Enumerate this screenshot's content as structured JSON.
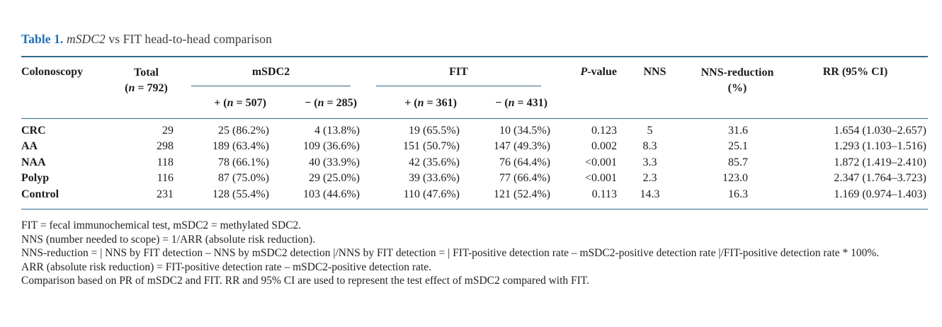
{
  "title": {
    "label": "Table 1.",
    "italic": " mSDC2",
    "rest": " vs FIT head-to-head comparison"
  },
  "header": {
    "colonoscopy": "Colonoscopy",
    "total_line1": "Total",
    "total_pre": "(",
    "total_n": "n",
    "total_post": " = 792)",
    "msdc2_label": "mSDC2",
    "fit_label": "FIT",
    "subcols": [
      {
        "pre": "+ (",
        "n": "n",
        "post": " = 507)"
      },
      {
        "pre": "− (",
        "n": "n",
        "post": " = 285)"
      },
      {
        "pre": "+ (",
        "n": "n",
        "post": " = 361)"
      },
      {
        "pre": "− (",
        "n": "n",
        "post": " = 431)"
      }
    ],
    "pvalue_italic": "P",
    "pvalue_rest": "-value",
    "nns": "NNS",
    "nns_reduction_line1": "NNS-reduction",
    "nns_reduction_line2": "(%)",
    "rr": "RR (95% CI)"
  },
  "rows": [
    {
      "label": "CRC",
      "values": [
        "29",
        "25 (86.2%)",
        "4 (13.8%)",
        "19 (65.5%)",
        "10 (34.5%)",
        "0.123",
        "5",
        "31.6",
        "1.654 (1.030–2.657)"
      ]
    },
    {
      "label": "AA",
      "values": [
        "298",
        "189 (63.4%)",
        "109 (36.6%)",
        "151 (50.7%)",
        "147 (49.3%)",
        "0.002",
        "8.3",
        "25.1",
        "1.293 (1.103–1.516)"
      ]
    },
    {
      "label": "NAA",
      "values": [
        "118",
        "78 (66.1%)",
        "40 (33.9%)",
        "42 (35.6%)",
        "76 (64.4%)",
        "<0.001",
        "3.3",
        "85.7",
        "1.872 (1.419–2.410)"
      ]
    },
    {
      "label": "Polyp",
      "values": [
        "116",
        "87 (75.0%)",
        "29 (25.0%)",
        "39 (33.6%)",
        "77 (66.4%)",
        "<0.001",
        "2.3",
        "123.0",
        "2.347 (1.764–3.723)"
      ]
    },
    {
      "label": "Control",
      "values": [
        "231",
        "128 (55.4%)",
        "103 (44.6%)",
        "110 (47.6%)",
        "121 (52.4%)",
        "0.113",
        "14.3",
        "16.3",
        "1.169 (0.974–1.403)"
      ]
    }
  ],
  "footnotes": [
    "FIT = fecal immunochemical test, mSDC2 = methylated SDC2.",
    "NNS (number needed to scope) = 1/ARR (absolute risk reduction).",
    "NNS-reduction = | NNS by FIT detection – NNS by mSDC2 detection |/NNS by FIT detection = | FIT-positive detection rate – mSDC2-positive detection rate |/FIT-positive detection rate * 100%.",
    "ARR (absolute risk reduction) = FIT-positive detection rate – mSDC2-positive detection rate.",
    "Comparison based on PR of mSDC2 and FIT. RR and 95% CI are used to represent the test effect of mSDC2 compared with FIT."
  ],
  "colors": {
    "rule": "#31688a",
    "caption_accent": "#2170b2",
    "text": "#1b1b1b"
  }
}
